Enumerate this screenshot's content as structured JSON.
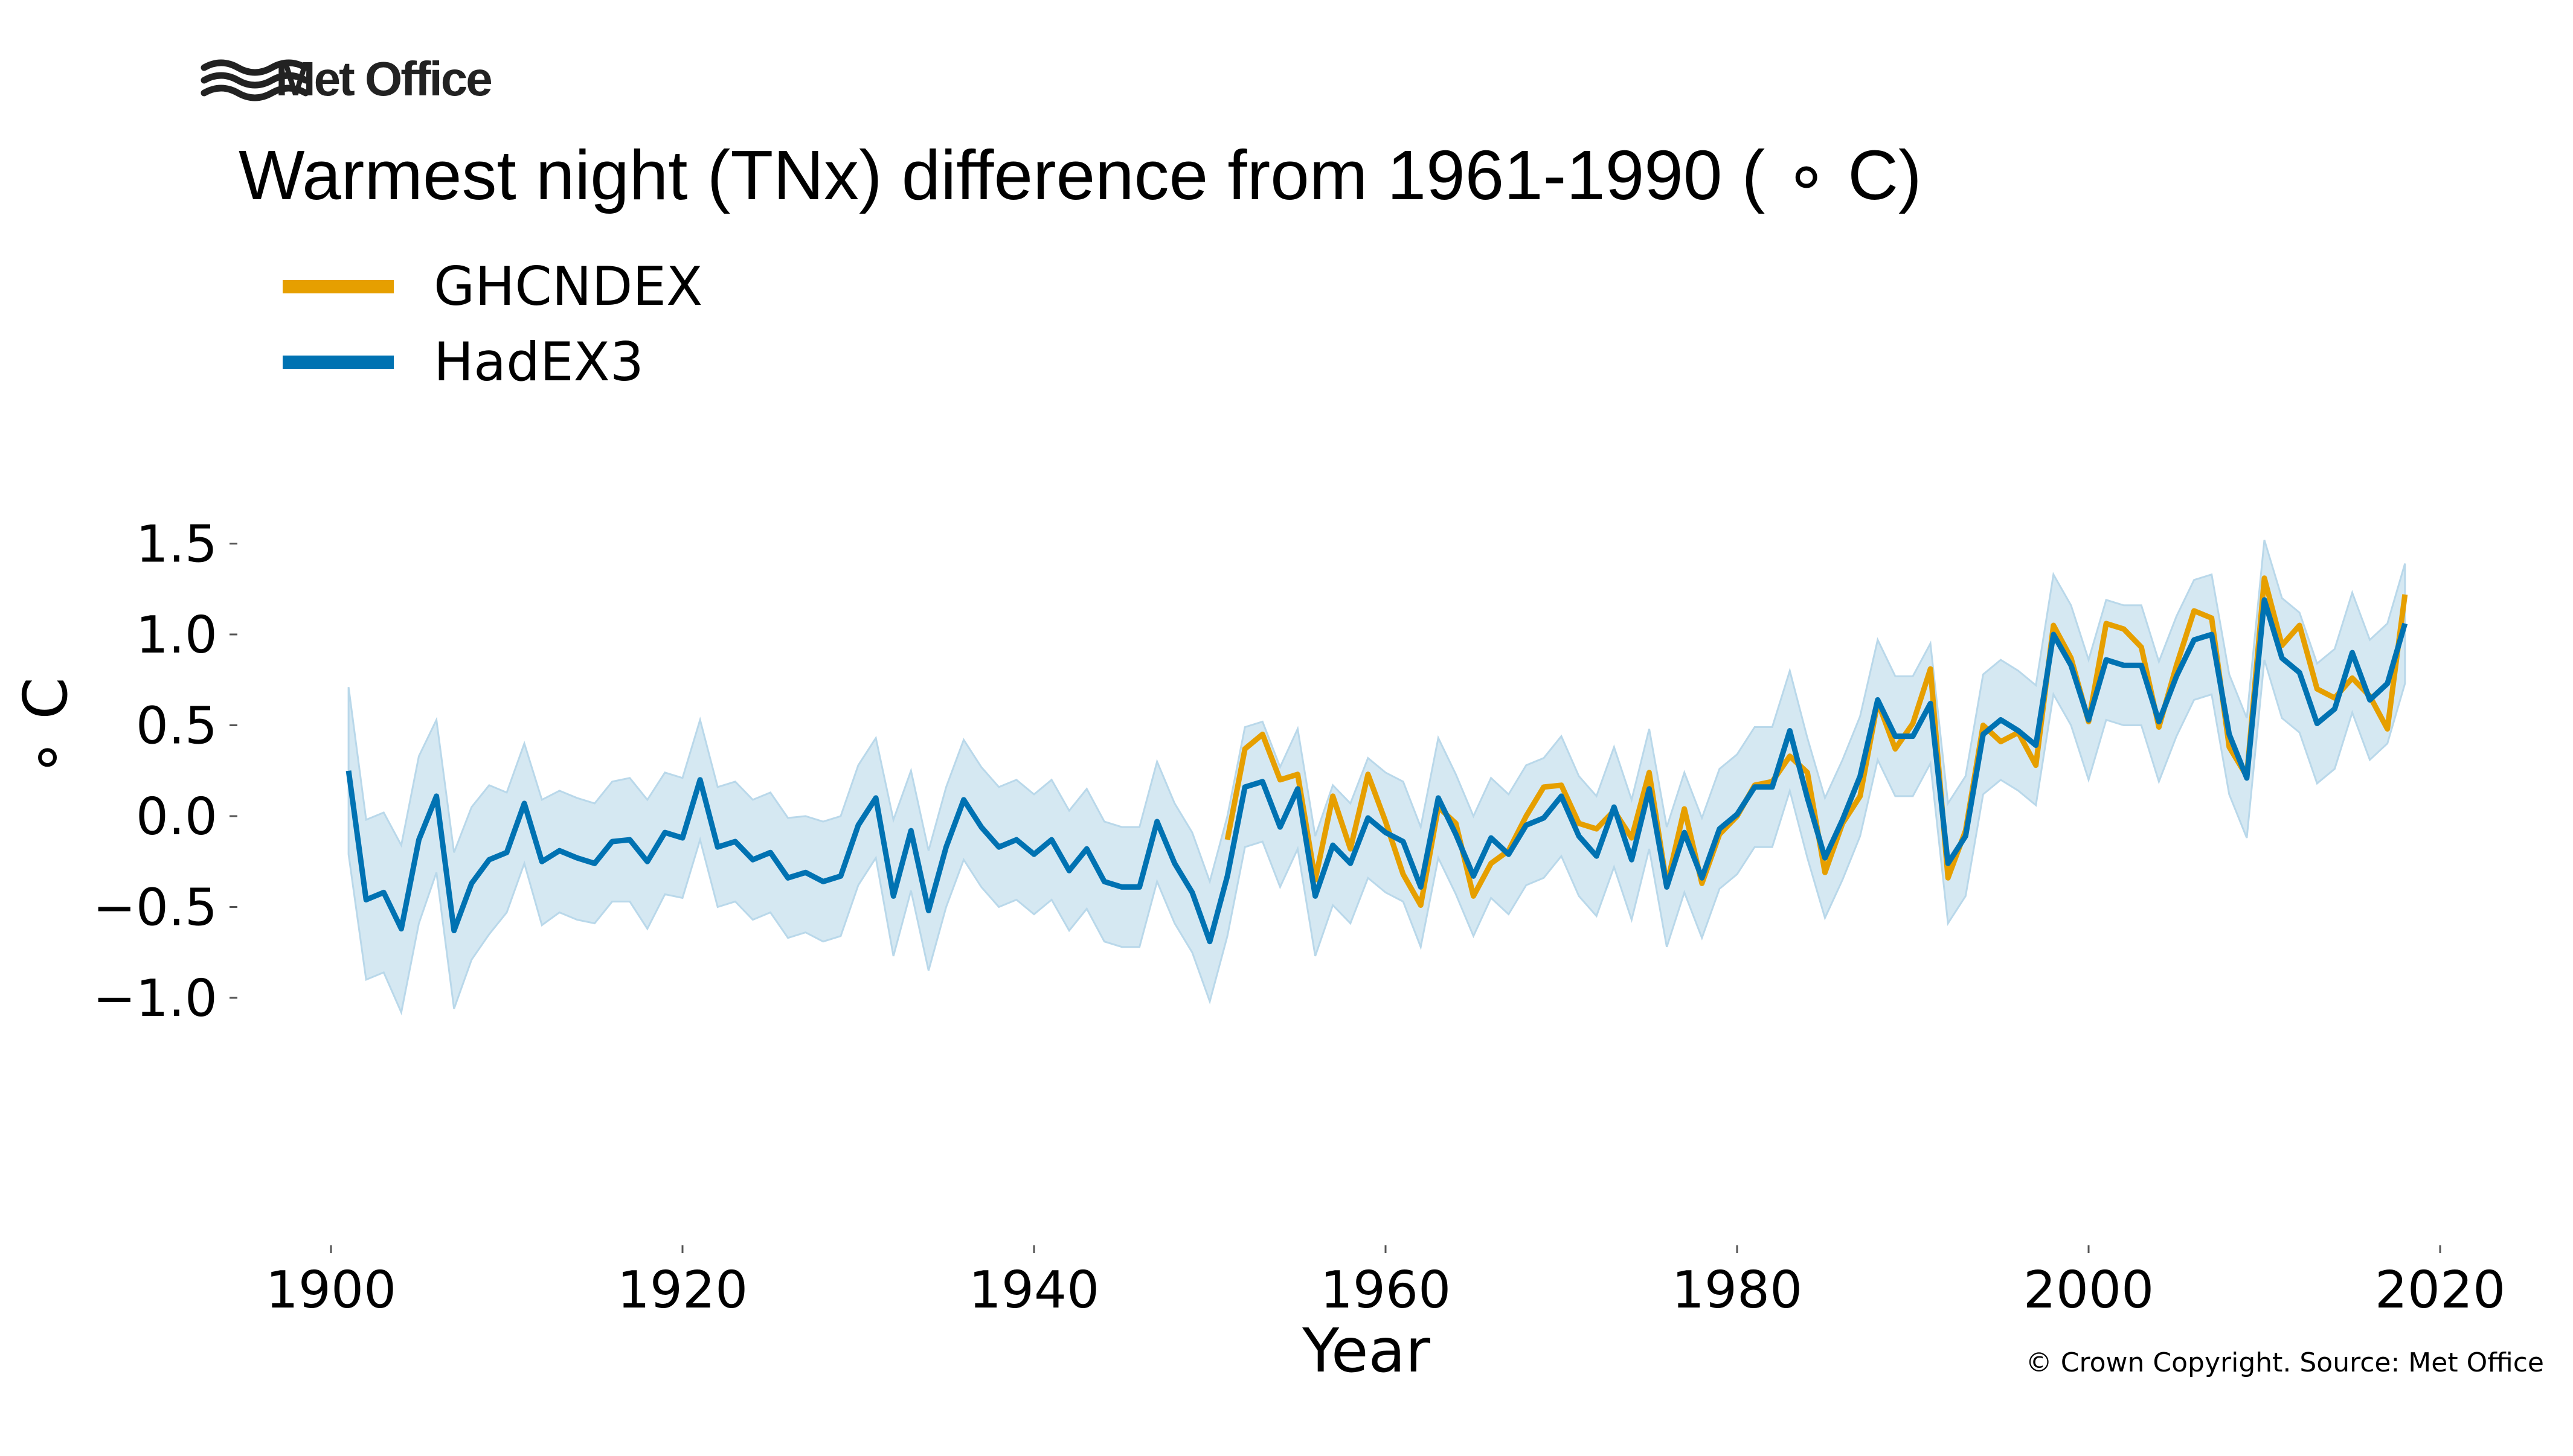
{
  "logo": {
    "text": "Met Office",
    "icon": "met-office-waves-icon"
  },
  "copyright": "© Crown Copyright. Source: Met Office",
  "colors": {
    "ghcndex": "#E69F00",
    "hadex3": "#0072B2",
    "band": "#d5e8f2",
    "band_edge": "#b9d8ea",
    "tick": "#555555"
  },
  "chart_data": {
    "type": "line",
    "title": "Warmest night (TNx) difference from 1961-1990 ( ∘ C)",
    "xlabel": "Year",
    "ylabel": "∘ C",
    "xlim": [
      1894,
      2027
    ],
    "ylim": [
      -1.18,
      1.62
    ],
    "x_ticks": [
      1900,
      1920,
      1940,
      1960,
      1980,
      2000,
      2020
    ],
    "x_tick_labels": [
      "1900",
      "1920",
      "1940",
      "1960",
      "1980",
      "2000",
      "2020"
    ],
    "y_ticks": [
      -1.0,
      -0.5,
      0.0,
      0.5,
      1.0,
      1.5
    ],
    "y_tick_labels": [
      "−1.0",
      "−0.5",
      "0.0",
      "0.5",
      "1.0",
      "1.5"
    ],
    "grid": false,
    "legend_position": "top-left",
    "series": [
      {
        "name": "GHCNDEX",
        "color": "#E69F00",
        "x_start": 1951,
        "values": [
          -0.13,
          0.37,
          0.45,
          0.2,
          0.23,
          -0.35,
          0.11,
          -0.18,
          0.23,
          -0.03,
          -0.32,
          -0.49,
          0.05,
          -0.04,
          -0.44,
          -0.26,
          -0.19,
          0.0,
          0.16,
          0.17,
          -0.04,
          -0.07,
          0.03,
          -0.12,
          0.24,
          -0.38,
          0.04,
          -0.37,
          -0.1,
          0.0,
          0.17,
          0.19,
          0.33,
          0.24,
          -0.31,
          -0.04,
          0.11,
          0.63,
          0.37,
          0.51,
          0.81,
          -0.34,
          -0.08,
          0.5,
          0.41,
          0.46,
          0.28,
          1.05,
          0.87,
          0.52,
          1.06,
          1.03,
          0.93,
          0.49,
          0.83,
          1.13,
          1.09,
          0.38,
          0.22,
          1.31,
          0.94,
          1.05,
          0.7,
          0.65,
          0.76,
          0.66,
          0.48,
          1.22
        ]
      },
      {
        "name": "HadEX3",
        "color": "#0072B2",
        "x_start": 1901,
        "values": [
          0.25,
          -0.46,
          -0.42,
          -0.62,
          -0.13,
          0.11,
          -0.63,
          -0.37,
          -0.24,
          -0.2,
          0.07,
          -0.25,
          -0.19,
          -0.23,
          -0.26,
          -0.14,
          -0.13,
          -0.25,
          -0.09,
          -0.12,
          0.2,
          -0.17,
          -0.14,
          -0.24,
          -0.2,
          -0.34,
          -0.31,
          -0.36,
          -0.33,
          -0.05,
          0.1,
          -0.44,
          -0.08,
          -0.52,
          -0.17,
          0.09,
          -0.06,
          -0.17,
          -0.13,
          -0.21,
          -0.13,
          -0.3,
          -0.18,
          -0.36,
          -0.39,
          -0.39,
          -0.03,
          -0.26,
          -0.42,
          -0.69,
          -0.33,
          0.16,
          0.19,
          -0.06,
          0.15,
          -0.44,
          -0.16,
          -0.26,
          -0.01,
          -0.09,
          -0.14,
          -0.39,
          0.1,
          -0.1,
          -0.33,
          -0.12,
          -0.21,
          -0.05,
          -0.01,
          0.11,
          -0.11,
          -0.22,
          0.05,
          -0.24,
          0.15,
          -0.39,
          -0.09,
          -0.34,
          -0.07,
          0.01,
          0.16,
          0.16,
          0.47,
          0.1,
          -0.23,
          -0.02,
          0.22,
          0.64,
          0.44,
          0.44,
          0.62,
          -0.26,
          -0.11,
          0.45,
          0.53,
          0.47,
          0.39,
          1.0,
          0.83,
          0.53,
          0.86,
          0.83,
          0.83,
          0.52,
          0.77,
          0.97,
          1.0,
          0.45,
          0.21,
          1.19,
          0.87,
          0.79,
          0.51,
          0.59,
          0.9,
          0.64,
          0.73,
          1.06
        ]
      },
      {
        "name": "HadEX3 uncertainty range",
        "color": "#d5e8f2",
        "x_start": 1901,
        "upper": [
          0.71,
          -0.02,
          0.02,
          -0.16,
          0.33,
          0.53,
          -0.2,
          0.05,
          0.17,
          0.13,
          0.4,
          0.09,
          0.14,
          0.1,
          0.07,
          0.19,
          0.21,
          0.09,
          0.24,
          0.21,
          0.53,
          0.16,
          0.19,
          0.09,
          0.13,
          -0.01,
          0.0,
          -0.03,
          0.0,
          0.28,
          0.43,
          -0.02,
          0.25,
          -0.19,
          0.16,
          0.42,
          0.27,
          0.16,
          0.2,
          0.12,
          0.2,
          0.03,
          0.15,
          -0.03,
          -0.06,
          -0.06,
          0.3,
          0.07,
          -0.09,
          -0.36,
          0.0,
          0.49,
          0.52,
          0.27,
          0.48,
          -0.11,
          0.17,
          0.07,
          0.32,
          0.24,
          0.19,
          -0.06,
          0.43,
          0.23,
          0.0,
          0.21,
          0.12,
          0.28,
          0.32,
          0.44,
          0.22,
          0.11,
          0.38,
          0.09,
          0.48,
          -0.06,
          0.24,
          -0.01,
          0.26,
          0.34,
          0.49,
          0.49,
          0.8,
          0.43,
          0.1,
          0.31,
          0.55,
          0.97,
          0.77,
          0.77,
          0.95,
          0.07,
          0.22,
          0.78,
          0.86,
          0.8,
          0.72,
          1.33,
          1.16,
          0.86,
          1.19,
          1.16,
          1.16,
          0.85,
          1.1,
          1.3,
          1.33,
          0.78,
          0.54,
          1.52,
          1.2,
          1.12,
          0.84,
          0.92,
          1.23,
          0.97,
          1.06,
          1.39
        ],
        "lower": [
          -0.21,
          -0.9,
          -0.86,
          -1.08,
          -0.59,
          -0.31,
          -1.06,
          -0.79,
          -0.65,
          -0.53,
          -0.26,
          -0.6,
          -0.53,
          -0.57,
          -0.59,
          -0.47,
          -0.47,
          -0.62,
          -0.43,
          -0.45,
          -0.13,
          -0.5,
          -0.47,
          -0.57,
          -0.53,
          -0.67,
          -0.64,
          -0.69,
          -0.66,
          -0.38,
          -0.23,
          -0.77,
          -0.41,
          -0.85,
          -0.5,
          -0.24,
          -0.39,
          -0.5,
          -0.46,
          -0.54,
          -0.46,
          -0.63,
          -0.51,
          -0.69,
          -0.72,
          -0.72,
          -0.36,
          -0.59,
          -0.75,
          -1.02,
          -0.66,
          -0.17,
          -0.14,
          -0.39,
          -0.18,
          -0.77,
          -0.49,
          -0.59,
          -0.34,
          -0.42,
          -0.47,
          -0.72,
          -0.23,
          -0.43,
          -0.66,
          -0.45,
          -0.54,
          -0.38,
          -0.34,
          -0.22,
          -0.44,
          -0.55,
          -0.28,
          -0.57,
          -0.18,
          -0.72,
          -0.42,
          -0.67,
          -0.4,
          -0.32,
          -0.17,
          -0.17,
          0.14,
          -0.23,
          -0.56,
          -0.35,
          -0.11,
          0.31,
          0.11,
          0.11,
          0.29,
          -0.59,
          -0.44,
          0.12,
          0.2,
          0.14,
          0.06,
          0.67,
          0.5,
          0.2,
          0.53,
          0.5,
          0.5,
          0.19,
          0.44,
          0.64,
          0.67,
          0.12,
          -0.12,
          0.86,
          0.54,
          0.46,
          0.18,
          0.26,
          0.57,
          0.31,
          0.4,
          0.73
        ]
      }
    ]
  }
}
